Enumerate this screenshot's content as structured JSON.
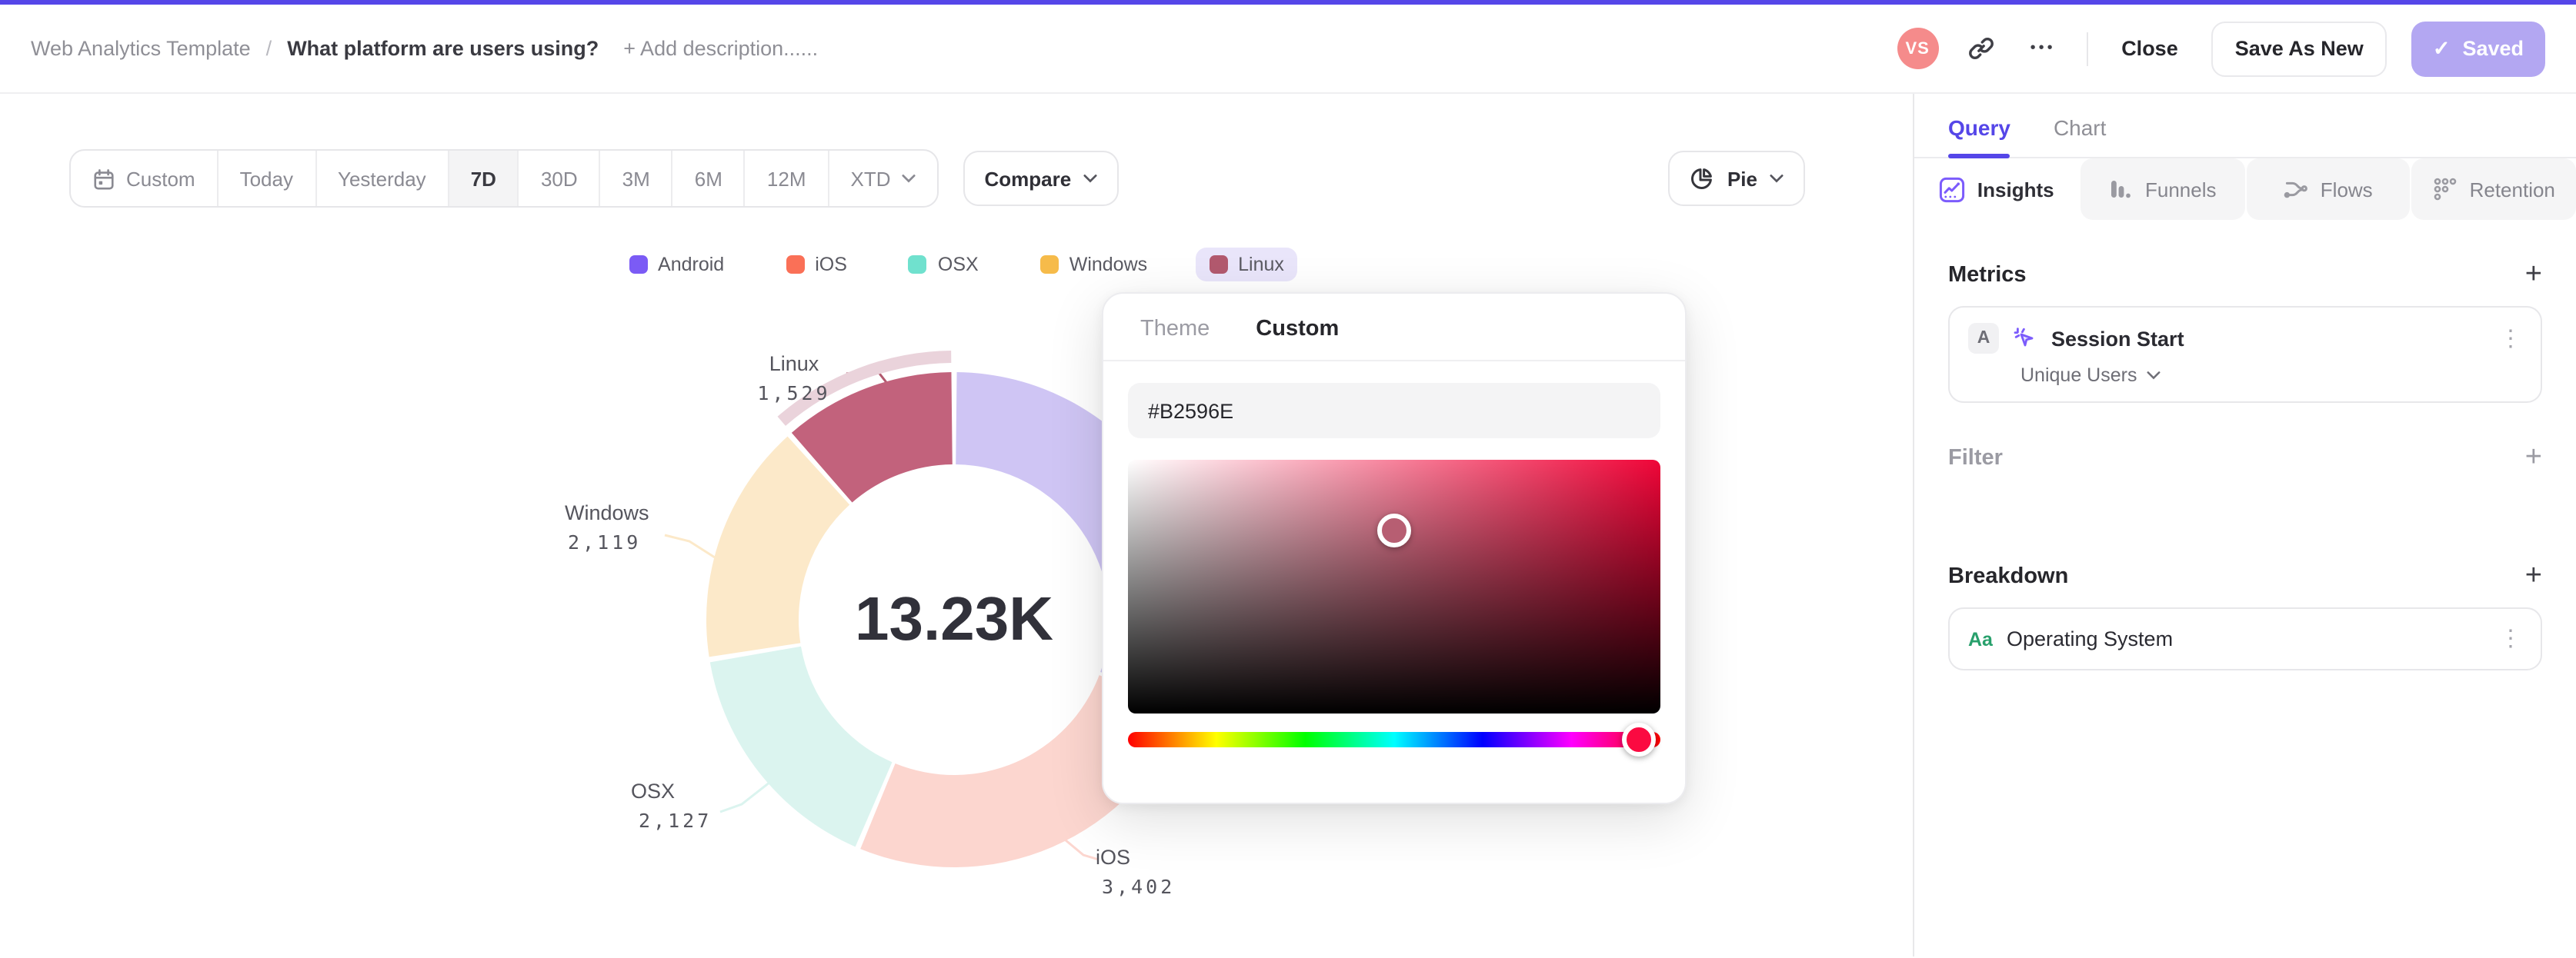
{
  "accent_color": "#5546E8",
  "header": {
    "breadcrumb_root": "Web Analytics Template",
    "breadcrumb_separator": "/",
    "title": "What platform are users using?",
    "add_description": "+ Add description......",
    "avatar_initials": "VS",
    "avatar_color": "#F58B8B",
    "more_glyph": "•••",
    "close_label": "Close",
    "save_as_new_label": "Save As New",
    "saved_label": "Saved",
    "saved_button_color": "#B3A7F2",
    "check_glyph": "✓"
  },
  "toolbar": {
    "date_ranges": [
      "Custom",
      "Today",
      "Yesterday",
      "7D",
      "30D",
      "3M",
      "6M",
      "12M",
      "XTD"
    ],
    "active_range": "7D",
    "compare_label": "Compare",
    "chart_type_label": "Pie"
  },
  "chart_data": {
    "type": "pie",
    "title": "What platform are users using?",
    "center_label": "13.23K",
    "total": 13230,
    "legend_position": "top",
    "selected": "Linux",
    "selected_highlight_color": "#EAD3DB",
    "legend_selected_bg": "#E9E5FA",
    "series": [
      {
        "name": "Android",
        "value": 4053,
        "color": "#7B5BF5",
        "render_color": "#CFC5F4",
        "label": ""
      },
      {
        "name": "iOS",
        "value": 3402,
        "color": "#FA7057",
        "render_color": "#FCD6CF",
        "label": "3,402"
      },
      {
        "name": "OSX",
        "value": 2127,
        "color": "#70E1CE",
        "render_color": "#DBF4EF",
        "label": "2,127"
      },
      {
        "name": "Windows",
        "value": 2119,
        "color": "#F6BB4A",
        "render_color": "#FCE9C9",
        "label": "2,119"
      },
      {
        "name": "Linux",
        "value": 1529,
        "color": "#B2596E",
        "render_color": "#C2627C",
        "label": "1,529",
        "selected": true
      }
    ]
  },
  "color_picker": {
    "theme_tab": "Theme",
    "custom_tab": "Custom",
    "active_tab": "Custom",
    "hex_value": "#B2596E",
    "gradient_hue": "#F00538",
    "cursor_color": "#B75E72",
    "handle_color": "#FB0A41"
  },
  "sidebar": {
    "tabs": {
      "query": "Query",
      "chart": "Chart",
      "active": "Query"
    },
    "view_tabs": [
      {
        "label": "Insights",
        "active": true
      },
      {
        "label": "Funnels",
        "active": false
      },
      {
        "label": "Flows",
        "active": false
      },
      {
        "label": "Retention",
        "active": false
      }
    ],
    "metrics": {
      "heading": "Metrics",
      "series_badge": "A",
      "event_name": "Session Start",
      "aggregation": "Unique Users"
    },
    "filter": {
      "heading": "Filter"
    },
    "breakdown": {
      "heading": "Breakdown",
      "property_icon": "Aa",
      "property_name": "Operating System"
    }
  },
  "icons": {
    "kebab": "⋮",
    "plus": "+"
  }
}
